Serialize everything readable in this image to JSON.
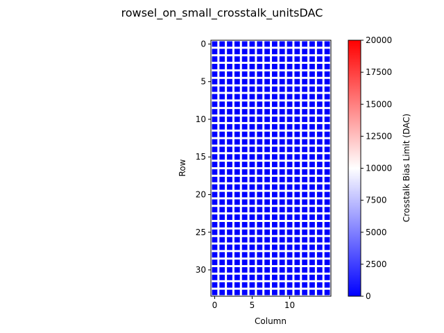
{
  "chart_data": {
    "type": "heatmap",
    "title": "rowsel_on_small_crosstalk_unitsDAC",
    "xlabel": "Column",
    "ylabel": "Row",
    "rows": 34,
    "columns": 16,
    "cell_value": 0,
    "cell_border_value": 10000,
    "x_ticks": [
      0,
      5,
      10
    ],
    "y_ticks": [
      0,
      5,
      10,
      15,
      20,
      25,
      30
    ],
    "colorbar": {
      "label": "Crosstalk Bias Limit (DAC)",
      "range": [
        0,
        20000
      ],
      "ticks": [
        0,
        2500,
        5000,
        7500,
        10000,
        12500,
        15000,
        17500,
        20000
      ],
      "colors": [
        "#0000ff",
        "#ffffff",
        "#ff0000"
      ]
    },
    "grid": false
  }
}
